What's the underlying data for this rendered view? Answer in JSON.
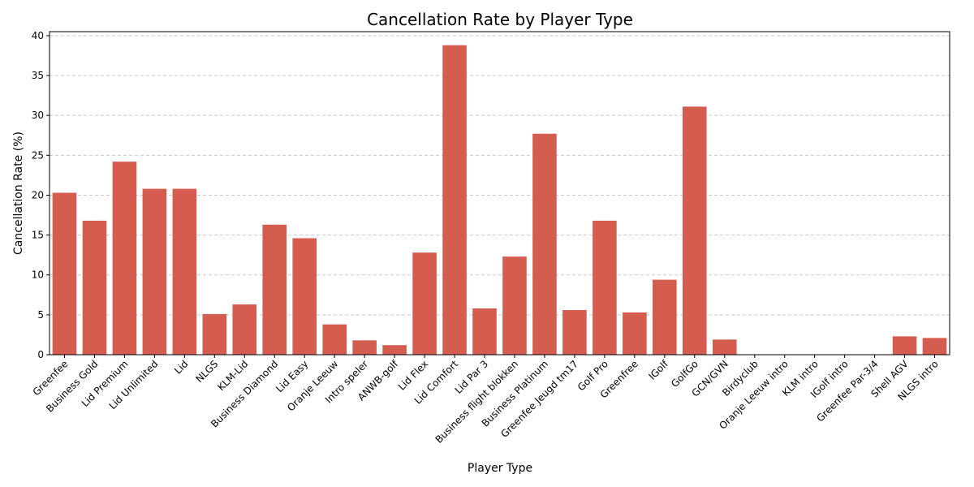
{
  "chart_data": {
    "type": "bar",
    "title": "Cancellation Rate by Player Type",
    "xlabel": "Player Type",
    "ylabel": "Cancellation Rate (%)",
    "ylim": [
      0,
      40.5
    ],
    "yticks": [
      0,
      5,
      10,
      15,
      20,
      25,
      30,
      35,
      40
    ],
    "grid": "horizontal dashed",
    "bar_color": "#d45d50",
    "categories": [
      "Greenfee",
      "Business Gold",
      "Lid Premium",
      "Lid Unlimited",
      "Lid",
      "NLGS",
      "KLM-Lid",
      "Business Diamond",
      "Lid Easy",
      "Oranje Leeuw",
      "Intro speler",
      "ANWB-golf",
      "Lid Flex",
      "Lid Comfort",
      "Lid Par 3",
      "Business flight blokken",
      "Business Platinum",
      "Greenfee Jeugd tm17",
      "Golf Pro",
      "Greenfree",
      "IGolf",
      "GolfGo",
      "GCN/GVN",
      "Birdyclub",
      "Oranje Leeuw intro",
      "KLM intro",
      "IGolf intro",
      "Greenfee Par-3/4",
      "Shell AGV",
      "NLGS intro"
    ],
    "values": [
      20.3,
      16.8,
      24.2,
      20.8,
      20.8,
      5.1,
      6.3,
      16.3,
      14.6,
      3.8,
      1.8,
      1.2,
      12.8,
      38.8,
      5.8,
      12.3,
      27.7,
      5.6,
      16.8,
      5.3,
      9.4,
      31.1,
      1.9,
      0,
      0,
      0,
      0,
      0,
      2.3,
      2.1
    ]
  }
}
